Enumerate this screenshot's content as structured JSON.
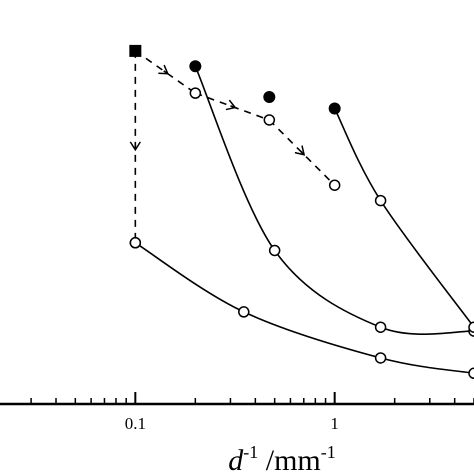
{
  "chart_data": {
    "type": "line",
    "x_scale": "log",
    "x_ticks": [
      0.1,
      1
    ],
    "x_tick_labels": [
      "0.1",
      "1"
    ],
    "xlim": [
      0.02,
      5
    ],
    "xlabel": {
      "symbol": "d",
      "symbol_exponent": "-1",
      "unit": " /mm",
      "unit_exponent": "-1"
    },
    "ylabel": "",
    "grid": false,
    "series": [
      {
        "marker": "filled-square",
        "line": "none",
        "points": [
          {
            "x": 0.1,
            "y": 0.92
          }
        ]
      },
      {
        "marker": "filled-circle",
        "line": "none",
        "points": [
          {
            "x": 0.2,
            "y": 0.88
          },
          {
            "x": 0.47,
            "y": 0.8
          },
          {
            "x": 1.0,
            "y": 0.77
          }
        ]
      },
      {
        "marker": "open-circle",
        "line": "dashed",
        "arrows": true,
        "points": [
          {
            "x": 0.1,
            "y": 0.92
          },
          {
            "x": 0.2,
            "y": 0.81
          },
          {
            "x": 0.47,
            "y": 0.74
          },
          {
            "x": 1.0,
            "y": 0.57
          }
        ]
      },
      {
        "marker": "open-circle",
        "line": "dashed",
        "arrows": true,
        "points": [
          {
            "x": 0.1,
            "y": 0.92
          },
          {
            "x": 0.1,
            "y": 0.42
          }
        ]
      },
      {
        "marker": "open-circle",
        "line": "solid",
        "points": [
          {
            "x": 0.1,
            "y": 0.42
          },
          {
            "x": 0.35,
            "y": 0.24
          },
          {
            "x": 1.7,
            "y": 0.12
          },
          {
            "x": 5.0,
            "y": 0.08
          }
        ]
      },
      {
        "marker": "open-circle",
        "line": "solid",
        "points": [
          {
            "x": 0.2,
            "y": 0.88
          },
          {
            "x": 0.5,
            "y": 0.4
          },
          {
            "x": 1.7,
            "y": 0.2
          },
          {
            "x": 5.0,
            "y": 0.19
          }
        ]
      },
      {
        "marker": "open-circle",
        "line": "solid",
        "points": [
          {
            "x": 1.0,
            "y": 0.77
          },
          {
            "x": 1.7,
            "y": 0.53
          },
          {
            "x": 5.0,
            "y": 0.2
          }
        ]
      }
    ]
  }
}
